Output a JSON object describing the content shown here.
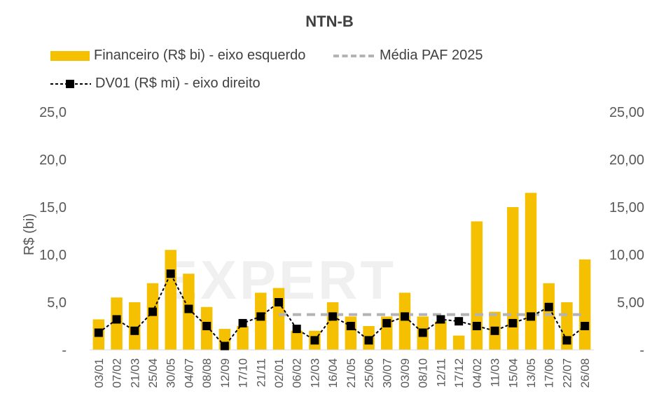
{
  "chart_data": {
    "type": "bar",
    "title": "NTN-B",
    "ylabel": "R$ (bi)",
    "ylim": [
      0,
      25
    ],
    "ylim_right": [
      0,
      25
    ],
    "yticks_left": [
      "-",
      "5,0",
      "10,0",
      "15,0",
      "20,0",
      "25,0"
    ],
    "yticks_right": [
      "-",
      "5,00",
      "10,00",
      "15,00",
      "20,00",
      "25,00"
    ],
    "categories": [
      "03/01",
      "07/02",
      "21/03",
      "25/04",
      "30/05",
      "04/07",
      "08/08",
      "12/09",
      "17/10",
      "21/11",
      "02/01",
      "06/02",
      "12/03",
      "16/04",
      "21/05",
      "25/06",
      "30/07",
      "03/09",
      "08/10",
      "12/11",
      "17/12",
      "04/02",
      "11/03",
      "15/04",
      "13/05",
      "17/06",
      "22/07",
      "26/08"
    ],
    "legend_position": "top",
    "grid": false,
    "series": [
      {
        "name": "Financeiro (R$ bi) - eixo esquerdo",
        "type": "bar",
        "color": "#f5c000",
        "values": [
          3.2,
          5.5,
          5.0,
          7.0,
          10.5,
          8.0,
          4.5,
          2.2,
          2.5,
          6.0,
          6.5,
          2.0,
          2.0,
          5.0,
          3.5,
          2.5,
          3.5,
          6.0,
          3.5,
          3.0,
          1.5,
          13.5,
          4.0,
          15.0,
          16.5,
          7.0,
          5.0,
          9.5
        ]
      },
      {
        "name": "Média PAF 2025",
        "type": "line",
        "color": "#b3b3b3",
        "x_start_category": "02/01",
        "x_end_category": "26/08",
        "value": 3.7
      },
      {
        "name": "DV01 (R$ mi) - eixo direito",
        "type": "line",
        "color": "#000000",
        "values": [
          1.8,
          3.2,
          2.0,
          4.0,
          8.0,
          4.3,
          2.5,
          0.4,
          2.8,
          3.5,
          5.0,
          2.2,
          1.0,
          3.5,
          2.5,
          1.0,
          2.8,
          3.5,
          1.8,
          3.2,
          3.0,
          2.5,
          2.0,
          2.8,
          3.5,
          4.5,
          1.0,
          2.5
        ]
      }
    ]
  }
}
